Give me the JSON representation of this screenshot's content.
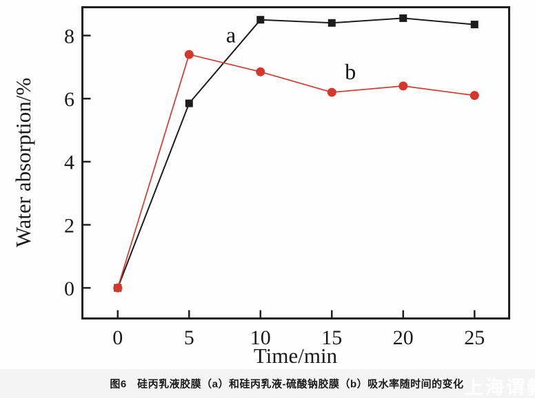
{
  "figure": {
    "caption": "图6　硅丙乳液胶膜（a）和硅丙乳液-硫酸钠胶膜（b）吸水率随时间的变化",
    "watermark": "上海谓義"
  },
  "chart_data": {
    "type": "line",
    "title": "",
    "xlabel": "Time/min",
    "ylabel": "Water absorption/%",
    "x": [
      0,
      5,
      10,
      15,
      20,
      25
    ],
    "series": [
      {
        "name": "a",
        "color": "#1c1c1c",
        "marker": "square",
        "values": [
          0,
          5.85,
          8.5,
          8.4,
          8.55,
          8.35
        ]
      },
      {
        "name": "b",
        "color": "#d6372d",
        "marker": "circle",
        "values": [
          0,
          7.4,
          6.85,
          6.2,
          6.4,
          6.1
        ]
      }
    ],
    "annotations": [
      {
        "text": "a",
        "x": 7.93,
        "y": 7.78
      },
      {
        "text": "b",
        "x": 16.3,
        "y": 6.62
      }
    ],
    "xticks": [
      0,
      5,
      10,
      15,
      20,
      25
    ],
    "yticks": [
      0,
      2,
      4,
      6,
      8
    ],
    "xlim": [
      -2.55,
      27.45
    ],
    "ylim": [
      -0.98,
      8.93
    ],
    "grid": false,
    "legend_position": "none",
    "axis_color": "#1f1f1f"
  }
}
